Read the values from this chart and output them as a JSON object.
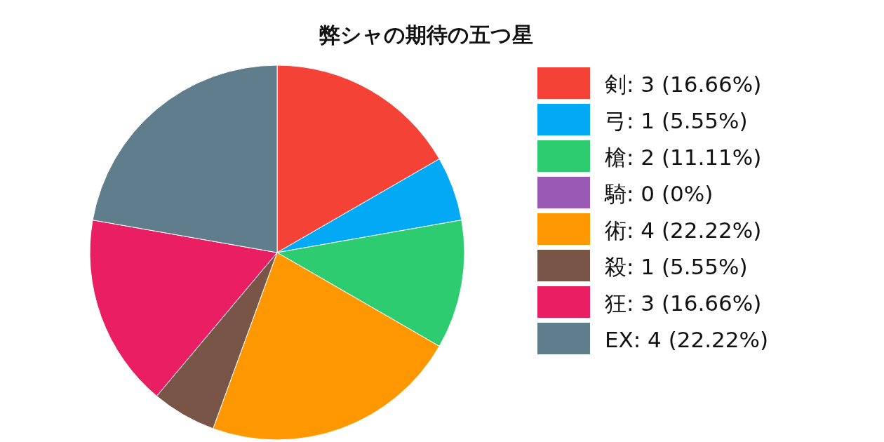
{
  "chart_data": {
    "type": "pie",
    "title": "弊シャの期待の五つ星",
    "categories": [
      "剣",
      "弓",
      "槍",
      "騎",
      "術",
      "殺",
      "狂",
      "EX"
    ],
    "values": [
      3,
      1,
      2,
      0,
      4,
      1,
      3,
      4
    ],
    "value_labels": [
      "3 (16.66%)",
      "1 (5.55%)",
      "2 (11.11%)",
      "0 (0%)",
      "4 (22.22%)",
      "1 (5.55%)",
      "3 (16.66%)",
      "4 (22.22%)"
    ],
    "colors": [
      "#f44336",
      "#03a9f4",
      "#2ecc71",
      "#9b59b6",
      "#ff9800",
      "#795548",
      "#e91e63",
      "#607d8b"
    ],
    "legend": "right"
  }
}
